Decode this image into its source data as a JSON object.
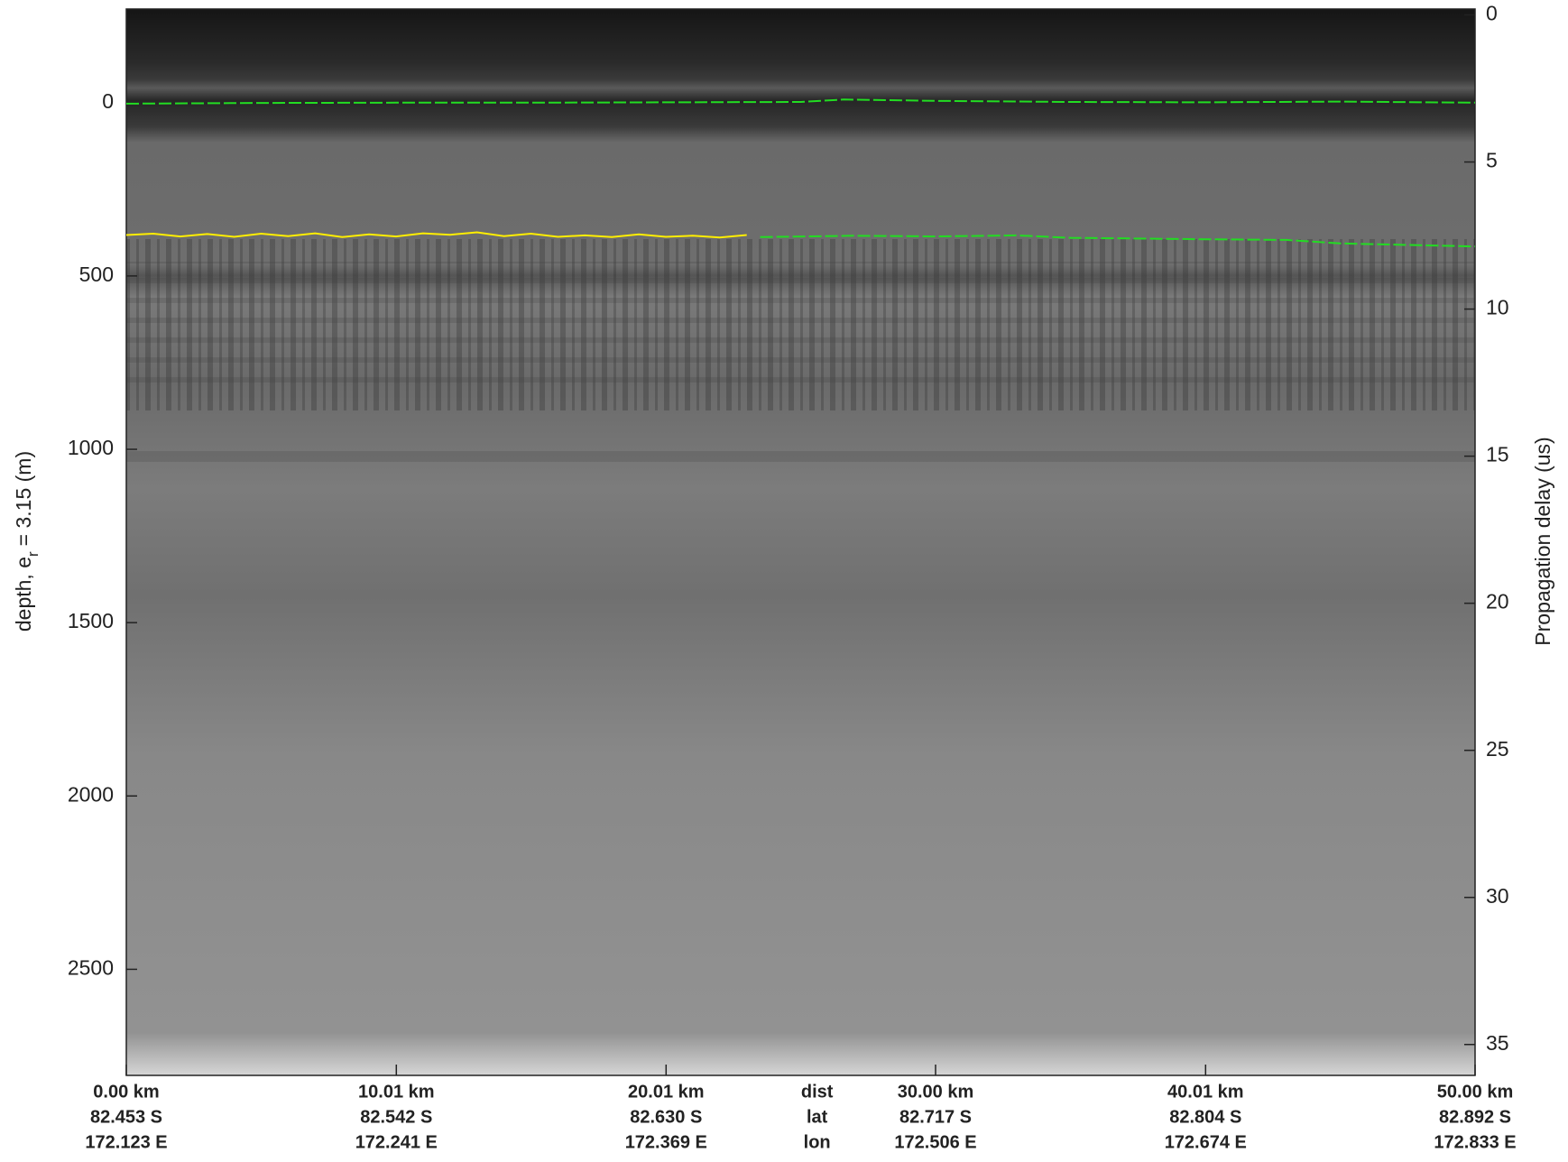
{
  "chart_data": {
    "type": "echogram",
    "ylabel": [
      "depth, e",
      "r",
      "= 3.15 (m)"
    ],
    "y2label": "Propagation delay (us)",
    "xlim": [
      0,
      50
    ],
    "xticks": [
      {
        "value": 0,
        "label": "0.00 km"
      },
      {
        "value": 10.01,
        "label": "10.01 km"
      },
      {
        "value": 20.01,
        "label": "20.01 km"
      },
      {
        "value": 30.0,
        "label": "30.00 km"
      },
      {
        "value": 40.01,
        "label": "40.01 km"
      },
      {
        "value": 50.0,
        "label": "50.00 km"
      }
    ],
    "xtick_lat": [
      "82.453 S",
      "82.542 S",
      "82.630 S",
      "82.717 S",
      "82.804 S",
      "82.892 S"
    ],
    "xtick_lon": [
      "172.123 E",
      "172.241 E",
      "172.369 E",
      "172.506 E",
      "172.674 E",
      "172.833 E"
    ],
    "x_rows": [
      "dist",
      "lat",
      "lon"
    ],
    "ylim": [
      -270,
      2806
    ],
    "yticks": [
      0,
      500,
      1000,
      1500,
      2000,
      2500
    ],
    "y2lim": [
      -0.2,
      36.05
    ],
    "y2ticks": [
      0,
      5,
      10,
      15,
      20,
      25,
      30,
      35
    ],
    "series": [
      {
        "color": "#22dd22",
        "dash": true,
        "x": [
          0,
          5,
          10,
          15,
          20,
          25,
          26.6,
          30,
          35,
          40,
          45,
          50
        ],
        "values": [
          3,
          1,
          0,
          0,
          -1,
          -2,
          -9,
          -5,
          -2,
          -1,
          -3,
          0
        ]
      },
      {
        "color": "#ffee00",
        "dash": false,
        "x": [
          0,
          1,
          2,
          3,
          4,
          5,
          6,
          7,
          8,
          9,
          10,
          11,
          12,
          13,
          14,
          15,
          16,
          17,
          18,
          19,
          20,
          21,
          22,
          23
        ],
        "values": [
          382,
          378,
          386,
          379,
          387,
          378,
          385,
          377,
          388,
          380,
          386,
          377,
          381,
          374,
          385,
          378,
          387,
          383,
          388,
          380,
          387,
          384,
          389,
          382
        ]
      },
      {
        "color": "#22dd22",
        "dash": true,
        "x": [
          23.5,
          27,
          30,
          33,
          35,
          40,
          43,
          45,
          50
        ],
        "values": [
          388,
          384,
          386,
          383,
          390,
          394,
          396,
          406,
          415
        ]
      }
    ]
  }
}
